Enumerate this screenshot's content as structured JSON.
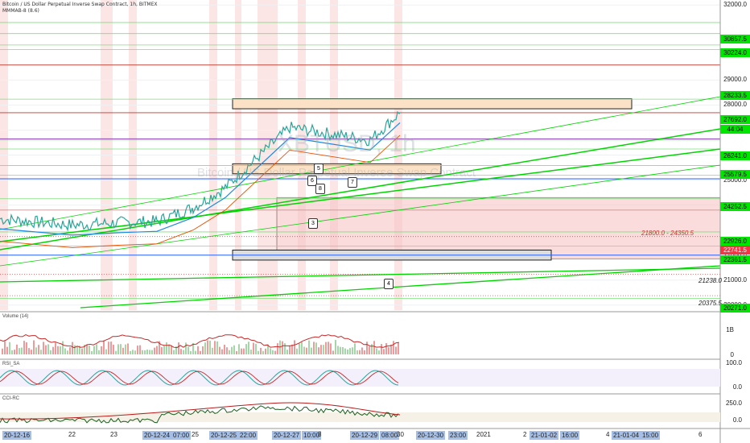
{
  "header": {
    "title": "Bitcoin / US Dollar Perpetual Inverse Swap Contract, 1h, BITMEX",
    "indicator": "MMMAB-8 (8.6)"
  },
  "watermark": {
    "symbol": "XBTUSD, 1h",
    "name": "Bitcoin / US Dollar Perpetual Inverse Swap Contract"
  },
  "colors": {
    "price_badge": "#4caf50",
    "sell_badge": "#f23645",
    "green_level": "#00e600",
    "red_level": "#e34b4b",
    "pink_zone": "#f7c6c6",
    "orange_zone": "#fbe2c6"
  },
  "price_axis": {
    "ticks": [
      "32000.0",
      "29000.0",
      "28000.0",
      "27000.0",
      "26000.0",
      "25000.0",
      "24000.0",
      "22000.0",
      "21000.0",
      "20000.0"
    ],
    "badges": [
      {
        "label": "30857.5",
        "color": "green"
      },
      {
        "label": "30224.0",
        "color": "green"
      },
      {
        "label": "28233.5",
        "color": "green"
      },
      {
        "label": "27692.0",
        "color": "green"
      },
      {
        "label": "44:04",
        "color": "green"
      },
      {
        "label": "26241.0",
        "color": "green"
      },
      {
        "label": "25579.5",
        "color": "green"
      },
      {
        "label": "24252.5",
        "color": "green"
      },
      {
        "label": "22926.0",
        "color": "green"
      },
      {
        "label": "22741.5",
        "color": "red"
      },
      {
        "label": "22361.5",
        "color": "green"
      },
      {
        "label": "20271.0",
        "color": "green"
      }
    ]
  },
  "annotations": {
    "zone_label": "21800.0 - 24350.5",
    "level_21238": "21238.0",
    "level_20375": "20375.5",
    "markers": [
      "3",
      "4",
      "5",
      "6",
      "7",
      "8"
    ]
  },
  "panes": {
    "volume": {
      "title": "Volume (14)",
      "ticks": [
        "1B",
        "0"
      ]
    },
    "rsi": {
      "title": "RSI_SA",
      "ticks": [
        "100.0",
        "0.0"
      ]
    },
    "cci": {
      "title": "CCI-RC",
      "ticks": [
        "250.0",
        "0.0"
      ]
    }
  },
  "time_axis": {
    "labels": [
      {
        "text": "20-12-16",
        "hl": true
      },
      {
        "text": "22",
        "hl": false
      },
      {
        "text": "23",
        "hl": false
      },
      {
        "text": "20-12-24",
        "hl": true
      },
      {
        "text": "07:00",
        "hl": true
      },
      {
        "text": "25",
        "hl": false
      },
      {
        "text": "20-12-25",
        "hl": true
      },
      {
        "text": "22:00",
        "hl": true
      },
      {
        "text": "20-12-27",
        "hl": true
      },
      {
        "text": "10:00",
        "hl": true
      },
      {
        "text": "8",
        "hl": false
      },
      {
        "text": "20-12-29",
        "hl": true
      },
      {
        "text": "08:00",
        "hl": true
      },
      {
        "text": "30",
        "hl": false
      },
      {
        "text": "20-12-30",
        "hl": true
      },
      {
        "text": "23:00",
        "hl": true
      },
      {
        "text": "2021",
        "hl": false
      },
      {
        "text": "2",
        "hl": false
      },
      {
        "text": "21-01-02",
        "hl": true
      },
      {
        "text": "16:00",
        "hl": true
      },
      {
        "text": "4",
        "hl": false
      },
      {
        "text": "21-01-04",
        "hl": true
      },
      {
        "text": "15:00",
        "hl": true
      },
      {
        "text": "6",
        "hl": false
      }
    ]
  },
  "chart_data": {
    "type": "line",
    "title": "Bitcoin / US Dollar Perpetual Inverse Swap Contract, 1h, BITMEX",
    "xlabel": "",
    "ylabel": "",
    "ylim": [
      19800,
      32200
    ],
    "x": [
      "20-12-16",
      "22",
      "23",
      "20-12-24",
      "25",
      "20-12-25",
      "20-12-27",
      "20-12-28",
      "20-12-29",
      "30"
    ],
    "series": [
      {
        "values": [
          23450,
          23200,
          23300,
          23350,
          23900,
          24700,
          27100,
          26850,
          26600,
          27692
        ]
      }
    ],
    "last_price": 27692.0,
    "levels": [
      30857.5,
      30224.0,
      28233.5,
      27692.0,
      26241.0,
      25579.5,
      24252.5,
      22926.0,
      22741.5,
      22361.5,
      21238.0,
      20375.5,
      20271.0
    ],
    "zone": [
      21800.0,
      24350.5
    ],
    "grid": true
  }
}
